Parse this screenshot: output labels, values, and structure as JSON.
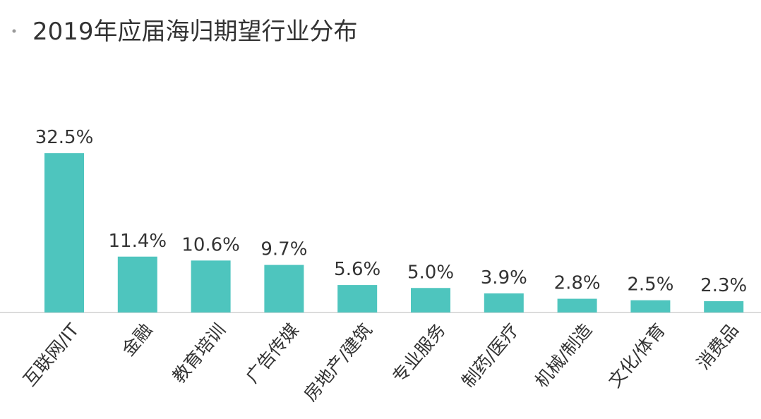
{
  "chart_data": {
    "type": "bar",
    "title": "2019年应届海归期望行业分布",
    "categories": [
      "互联网/IT",
      "金融",
      "教育培训",
      "广告传媒",
      "房地产/建筑",
      "专业服务",
      "制药/医疗",
      "机械/制造",
      "文化/体育",
      "消费品"
    ],
    "values": [
      32.5,
      11.4,
      10.6,
      9.7,
      5.6,
      5.0,
      3.9,
      2.8,
      2.5,
      2.3
    ],
    "value_labels": [
      "32.5%",
      "11.4%",
      "10.6%",
      "9.7%",
      "5.6%",
      "5.0%",
      "3.9%",
      "2.8%",
      "2.5%",
      "2.3%"
    ],
    "color": "#4ec5be"
  }
}
